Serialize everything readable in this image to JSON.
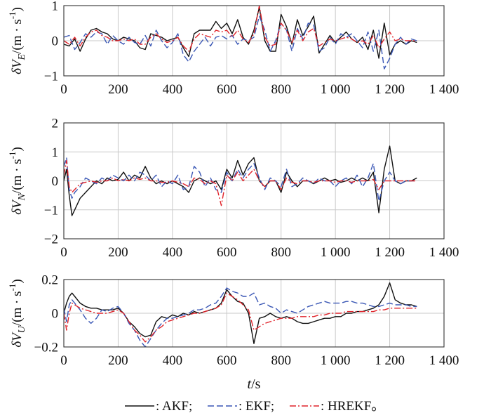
{
  "chart_data": {
    "type": "line",
    "x_axis": {
      "range": [
        0,
        1400
      ],
      "ticks": [
        0,
        200,
        400,
        600,
        800,
        1000,
        1200,
        1400
      ],
      "tick_labels": [
        "0",
        "200",
        "400",
        "600",
        "800",
        "1 000",
        "1 200",
        "1 400"
      ],
      "label_italic": "t",
      "label_rest": "/s"
    },
    "series_styles": [
      {
        "name": "AKF",
        "color": "#111111",
        "dash": ""
      },
      {
        "name": "EKF",
        "color": "#3a57b5",
        "dash": "9,4"
      },
      {
        "name": "HREKF",
        "color": "#e0242b",
        "dash": "9,3,2,3"
      }
    ],
    "legend": {
      "items": [
        {
          "label": ": AKF;",
          "color": "#111111",
          "dash": ""
        },
        {
          "label": ": EKF;",
          "color": "#3a57b5",
          "dash": "9,4"
        },
        {
          "label": ": HREKF。",
          "color": "#e0242b",
          "dash": "9,3,2,3"
        }
      ]
    },
    "panels": [
      {
        "ylabel_base": "δV",
        "ylabel_sub": "E",
        "ylabel_unit": "/(m · s",
        "ylabel_sup": "-1",
        "ylabel_close": ")",
        "ylim": [
          -1,
          1
        ],
        "yticks": [
          -1,
          0,
          1
        ],
        "ytick_labels": [
          "−1",
          "0",
          "1"
        ],
        "x": [
          0,
          20,
          40,
          60,
          80,
          100,
          120,
          140,
          160,
          180,
          200,
          220,
          240,
          260,
          280,
          300,
          320,
          340,
          360,
          380,
          400,
          420,
          440,
          460,
          480,
          500,
          520,
          540,
          560,
          580,
          600,
          620,
          640,
          660,
          680,
          700,
          720,
          740,
          760,
          780,
          800,
          820,
          840,
          860,
          880,
          900,
          920,
          940,
          960,
          980,
          1000,
          1020,
          1040,
          1060,
          1080,
          1100,
          1120,
          1140,
          1160,
          1180,
          1200,
          1220,
          1240,
          1260,
          1280,
          1300
        ],
        "series": [
          {
            "name": "AKF",
            "values": [
              -0.1,
              -0.15,
              0.05,
              -0.3,
              0.05,
              0.3,
              0.35,
              0.25,
              0.2,
              0.05,
              0.0,
              0.1,
              0.05,
              0.0,
              -0.2,
              -0.25,
              0.2,
              0.15,
              0.1,
              0.0,
              0.05,
              0.1,
              -0.2,
              -0.45,
              0.2,
              0.3,
              0.3,
              0.3,
              0.55,
              0.35,
              0.5,
              0.2,
              0.6,
              0.1,
              -0.1,
              0.3,
              0.95,
              0.0,
              -0.3,
              -0.3,
              0.75,
              0.4,
              -0.1,
              0.6,
              0.15,
              0.4,
              0.7,
              -0.35,
              -0.1,
              0.15,
              -0.05,
              0.1,
              0.25,
              0.05,
              -0.05,
              0.1,
              -0.25,
              0.3,
              -0.5,
              0.5,
              -0.4,
              -0.1,
              0.0,
              -0.1,
              0.0,
              -0.05
            ]
          },
          {
            "name": "EKF",
            "values": [
              0.1,
              0.15,
              -0.25,
              -0.05,
              0.2,
              0.1,
              0.25,
              0.2,
              -0.1,
              0.15,
              0.0,
              -0.1,
              0.1,
              -0.05,
              -0.1,
              0.15,
              -0.15,
              0.3,
              0.0,
              -0.2,
              -0.05,
              0.2,
              -0.4,
              -0.6,
              -0.3,
              -0.1,
              0.1,
              -0.15,
              0.1,
              0.15,
              0.05,
              0.15,
              -0.1,
              0.05,
              0.0,
              0.1,
              0.7,
              0.3,
              -0.3,
              0.0,
              0.5,
              0.3,
              -0.3,
              0.35,
              0.05,
              0.5,
              0.45,
              -0.3,
              -0.2,
              0.1,
              -0.1,
              0.2,
              0.1,
              0.2,
              0.0,
              -0.2,
              0.25,
              -0.3,
              0.3,
              -0.8,
              -0.5,
              -0.1,
              0.1,
              -0.1,
              0.05,
              0.0
            ]
          },
          {
            "name": "HREKF",
            "values": [
              0.0,
              -0.1,
              0.1,
              -0.15,
              0.1,
              0.25,
              0.3,
              0.15,
              0.1,
              0.0,
              0.0,
              0.05,
              0.0,
              0.05,
              -0.1,
              -0.1,
              0.1,
              0.2,
              0.05,
              -0.05,
              0.0,
              0.1,
              -0.15,
              -0.3,
              0.05,
              0.2,
              0.15,
              0.1,
              0.3,
              0.25,
              0.3,
              0.1,
              0.3,
              0.05,
              -0.05,
              0.2,
              1.0,
              0.1,
              -0.15,
              -0.1,
              0.5,
              0.3,
              -0.05,
              0.3,
              0.0,
              0.25,
              0.35,
              -0.15,
              -0.05,
              0.05,
              0.0,
              0.05,
              0.1,
              0.05,
              -0.05,
              0.0,
              -0.1,
              0.15,
              -0.2,
              0.05,
              0.25,
              0.0,
              0.05,
              0.0,
              0.0,
              0.0
            ]
          }
        ]
      },
      {
        "ylabel_base": "δV",
        "ylabel_sub": "N",
        "ylabel_unit": "/(m · s",
        "ylabel_sup": "-1",
        "ylabel_close": ")",
        "ylim": [
          -2,
          2
        ],
        "yticks": [
          -2,
          -1,
          0,
          1,
          2
        ],
        "ytick_labels": [
          "−2",
          "−1",
          "0",
          "1",
          "2"
        ],
        "x": [
          0,
          10,
          20,
          30,
          40,
          60,
          80,
          100,
          120,
          140,
          160,
          180,
          200,
          220,
          240,
          260,
          280,
          300,
          320,
          340,
          360,
          380,
          400,
          420,
          440,
          460,
          480,
          500,
          520,
          540,
          560,
          580,
          600,
          620,
          640,
          660,
          680,
          700,
          720,
          740,
          760,
          780,
          800,
          820,
          840,
          860,
          880,
          900,
          920,
          940,
          960,
          980,
          1000,
          1020,
          1040,
          1060,
          1080,
          1100,
          1120,
          1140,
          1160,
          1180,
          1200,
          1220,
          1240,
          1260,
          1280,
          1300
        ],
        "series": [
          {
            "name": "AKF",
            "values": [
              0.0,
              0.4,
              -0.5,
              -1.2,
              -1.0,
              -0.6,
              -0.4,
              -0.2,
              0.0,
              -0.1,
              0.1,
              0.0,
              0.05,
              0.3,
              0.0,
              0.2,
              0.1,
              0.5,
              0.1,
              -0.1,
              0.0,
              -0.1,
              0.0,
              -0.1,
              -0.2,
              -0.4,
              0.0,
              0.1,
              0.0,
              -0.1,
              0.0,
              -0.3,
              0.4,
              0.1,
              0.7,
              0.2,
              0.6,
              0.8,
              0.0,
              -0.2,
              0.0,
              0.0,
              -0.4,
              0.3,
              0.0,
              -0.2,
              0.0,
              0.0,
              -0.1,
              0.0,
              0.1,
              0.0,
              0.05,
              -0.05,
              0.0,
              0.1,
              0.0,
              0.1,
              0.0,
              0.3,
              -1.1,
              0.4,
              1.2,
              0.0,
              -0.1,
              0.0,
              0.0,
              0.1
            ]
          },
          {
            "name": "EKF",
            "values": [
              0.5,
              0.8,
              -0.3,
              -0.6,
              -0.4,
              -0.2,
              0.1,
              0.0,
              -0.1,
              0.1,
              0.0,
              0.2,
              0.1,
              0.0,
              0.2,
              0.0,
              0.3,
              0.2,
              0.0,
              0.2,
              -0.2,
              0.0,
              -0.1,
              0.2,
              -0.3,
              -0.2,
              0.5,
              0.3,
              -0.2,
              0.1,
              -0.3,
              -0.4,
              0.3,
              0.0,
              0.4,
              0.1,
              0.4,
              0.6,
              0.1,
              -0.3,
              0.1,
              0.0,
              -0.2,
              0.4,
              -0.2,
              -0.1,
              0.1,
              0.0,
              -0.1,
              0.1,
              0.0,
              0.0,
              -0.2,
              0.0,
              0.1,
              -0.1,
              0.2,
              -0.2,
              0.1,
              0.6,
              -0.7,
              0.0,
              0.3,
              0.0,
              -0.1,
              0.0,
              0.0,
              0.0
            ]
          },
          {
            "name": "HREKF",
            "values": [
              0.2,
              0.7,
              -0.2,
              -0.4,
              -0.3,
              -0.1,
              -0.05,
              0.0,
              -0.05,
              0.0,
              0.0,
              0.1,
              0.0,
              0.05,
              0.0,
              0.1,
              0.05,
              0.1,
              0.0,
              0.0,
              -0.05,
              -0.05,
              0.0,
              -0.05,
              -0.1,
              -0.2,
              0.1,
              0.05,
              -0.1,
              0.0,
              -0.1,
              -0.85,
              0.2,
              0.0,
              0.3,
              0.0,
              0.2,
              0.4,
              0.0,
              -0.2,
              0.0,
              0.0,
              -0.3,
              0.1,
              -0.05,
              -0.1,
              0.0,
              0.0,
              -0.05,
              0.0,
              0.0,
              0.0,
              -0.05,
              0.0,
              0.0,
              -0.05,
              0.0,
              0.0,
              0.0,
              0.05,
              -0.3,
              0.0,
              0.0,
              0.0,
              0.0,
              0.0,
              0.0,
              0.0
            ]
          }
        ]
      },
      {
        "ylabel_base": "δV",
        "ylabel_sub": "U",
        "ylabel_unit": "/(m · s",
        "ylabel_sup": "-1",
        "ylabel_close": ")",
        "ylim": [
          -0.2,
          0.2
        ],
        "yticks": [
          -0.2,
          0,
          0.2
        ],
        "ytick_labels": [
          "−0.2",
          "0",
          "0.2"
        ],
        "x": [
          0,
          10,
          20,
          30,
          40,
          60,
          80,
          100,
          120,
          140,
          160,
          180,
          200,
          220,
          240,
          260,
          280,
          300,
          320,
          340,
          360,
          380,
          400,
          420,
          440,
          460,
          480,
          500,
          520,
          540,
          560,
          580,
          600,
          620,
          640,
          660,
          680,
          700,
          720,
          740,
          760,
          780,
          800,
          820,
          840,
          860,
          880,
          900,
          920,
          940,
          960,
          980,
          1000,
          1020,
          1040,
          1060,
          1080,
          1100,
          1120,
          1140,
          1160,
          1180,
          1200,
          1220,
          1240,
          1260,
          1280,
          1300
        ],
        "series": [
          {
            "name": "AKF",
            "values": [
              0.0,
              0.06,
              0.1,
              0.12,
              0.1,
              0.06,
              0.04,
              0.03,
              0.03,
              0.02,
              0.02,
              0.02,
              0.03,
              0.0,
              -0.05,
              -0.08,
              -0.12,
              -0.14,
              -0.13,
              -0.05,
              -0.02,
              -0.03,
              -0.01,
              -0.02,
              0.0,
              -0.01,
              0.01,
              0.0,
              0.01,
              0.02,
              0.03,
              0.06,
              0.14,
              0.1,
              0.07,
              0.06,
              0.0,
              -0.18,
              -0.03,
              -0.02,
              0.0,
              -0.02,
              -0.03,
              -0.02,
              -0.03,
              -0.05,
              -0.06,
              -0.06,
              -0.05,
              -0.04,
              -0.03,
              -0.03,
              -0.02,
              -0.02,
              0.0,
              0.0,
              0.01,
              0.01,
              0.02,
              0.03,
              0.05,
              0.1,
              0.18,
              0.08,
              0.06,
              0.05,
              0.05,
              0.04
            ]
          },
          {
            "name": "EKF",
            "values": [
              0.03,
              -0.05,
              0.05,
              0.08,
              0.06,
              0.02,
              -0.03,
              -0.06,
              -0.03,
              0.02,
              0.01,
              0.03,
              0.04,
              0.0,
              -0.06,
              -0.1,
              -0.16,
              -0.2,
              -0.15,
              -0.1,
              -0.06,
              -0.03,
              -0.03,
              -0.02,
              -0.01,
              0.0,
              0.02,
              0.02,
              0.03,
              0.05,
              0.06,
              0.1,
              0.15,
              0.13,
              0.12,
              0.1,
              0.1,
              0.12,
              0.05,
              0.06,
              0.04,
              0.03,
              0.0,
              0.02,
              0.01,
              0.0,
              0.02,
              0.04,
              0.05,
              0.06,
              0.07,
              0.06,
              0.06,
              0.06,
              0.07,
              0.07,
              0.06,
              0.06,
              0.05,
              0.04,
              0.04,
              0.05,
              0.06,
              0.05,
              0.05,
              0.05,
              0.04,
              0.04
            ]
          },
          {
            "name": "HREKF",
            "values": [
              0.0,
              -0.1,
              0.0,
              0.06,
              0.05,
              0.03,
              0.02,
              0.01,
              0.0,
              0.0,
              0.0,
              0.01,
              0.02,
              0.0,
              -0.05,
              -0.1,
              -0.13,
              -0.17,
              -0.14,
              -0.1,
              -0.08,
              -0.05,
              -0.04,
              -0.03,
              -0.02,
              -0.01,
              0.0,
              0.0,
              0.01,
              0.02,
              0.03,
              0.05,
              0.12,
              0.1,
              0.08,
              0.05,
              0.02,
              -0.1,
              -0.08,
              -0.06,
              -0.05,
              -0.04,
              -0.03,
              -0.03,
              -0.03,
              -0.02,
              -0.02,
              -0.02,
              -0.02,
              -0.01,
              -0.01,
              0.0,
              0.0,
              0.0,
              0.01,
              0.01,
              0.01,
              0.01,
              0.01,
              0.01,
              0.02,
              0.02,
              0.03,
              0.03,
              0.03,
              0.03,
              0.03,
              0.03
            ]
          }
        ]
      }
    ]
  }
}
